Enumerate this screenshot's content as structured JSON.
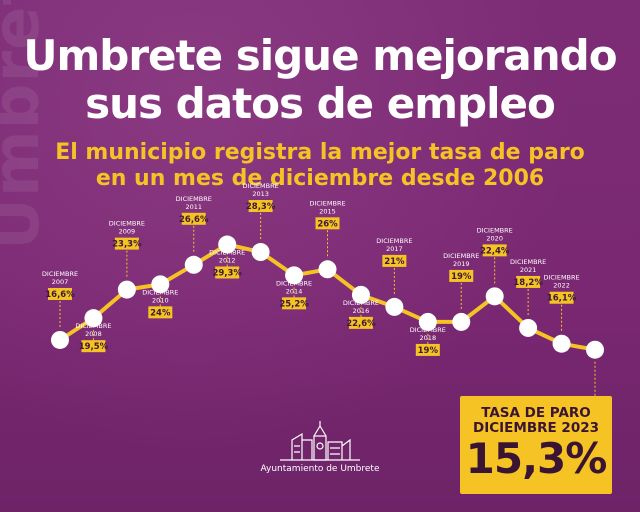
{
  "title_line1": "Umbrete sigue mejorando",
  "title_line2": "sus datos de empleo",
  "subtitle_line1": "El municipio registra la mejor tasa de paro",
  "subtitle_line2": "en un mes de diciembre desde 2006",
  "background_watermark": "Umbrete",
  "highlight": {
    "line1": "TASA DE PARO",
    "line2": "DICIEMBRE 2023",
    "value": "15,3%"
  },
  "logo_text": "Ayuntamiento de Umbrete",
  "colors": {
    "background": "#7a2a73",
    "accent": "#f6c324",
    "dark_text": "#3a1533",
    "point": "#ffffff"
  },
  "chart_data": {
    "type": "line",
    "series_label_word": "DICIEMBRE",
    "x": [
      "2007",
      "2008",
      "2009",
      "2010",
      "2011",
      "2012",
      "2013",
      "2014",
      "2015",
      "2016",
      "2017",
      "2018",
      "2019",
      "2020",
      "2021",
      "2022",
      "2023"
    ],
    "values": [
      16.6,
      19.5,
      23.3,
      24,
      26.6,
      29.3,
      28.3,
      25.2,
      26,
      22.6,
      21,
      19,
      19,
      22.4,
      18.2,
      16.1,
      15.3
    ],
    "value_labels": [
      "16,6%",
      "19,5%",
      "23,3%",
      "24%",
      "26,6%",
      "29,3%",
      "28,3%",
      "25,2%",
      "26%",
      "22,6%",
      "21%",
      "19%",
      "19%",
      "22,4%",
      "18,2%",
      "16,1%",
      "15,3%"
    ],
    "label_position": [
      "above",
      "below",
      "above",
      "below",
      "above",
      "below",
      "above",
      "below",
      "above",
      "below",
      "above",
      "below",
      "above",
      "above",
      "above",
      "above",
      "box"
    ]
  }
}
